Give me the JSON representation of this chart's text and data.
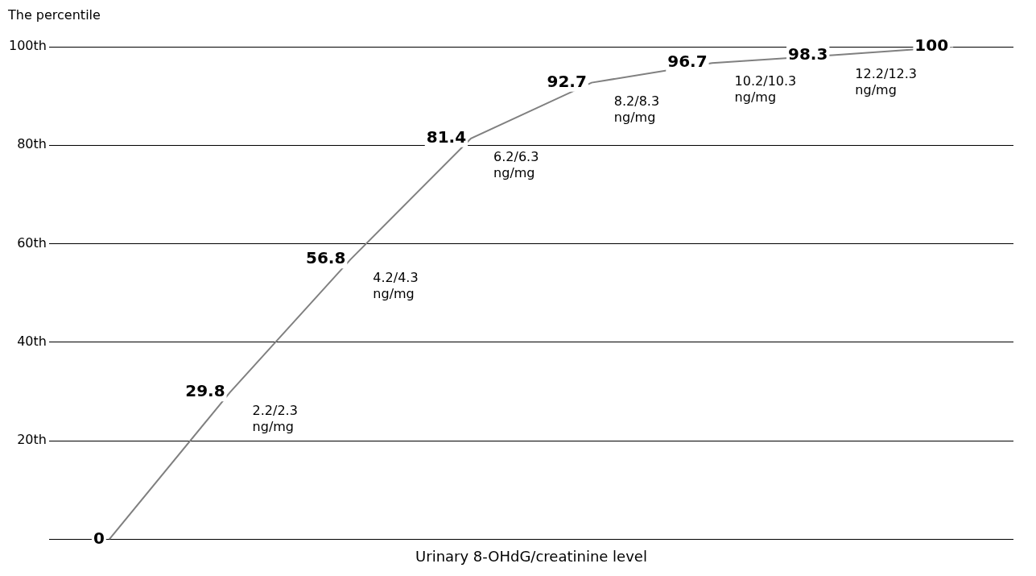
{
  "chart_data": {
    "type": "line",
    "ylabel": "The percentile",
    "xlabel": "Urinary 8-OHdG/creatinine level",
    "categories": [
      null,
      null,
      null,
      null,
      null,
      null,
      null,
      null
    ],
    "series": [
      {
        "color": "#808080",
        "values": [
          0,
          29.8,
          56.8,
          81.4,
          92.7,
          96.7,
          98.3,
          100
        ]
      }
    ],
    "ylim": [
      0,
      100
    ],
    "yticks": [
      {
        "value": 0,
        "label": null
      },
      {
        "value": 20,
        "label": "20th"
      },
      {
        "value": 40,
        "label": "40th"
      },
      {
        "value": 60,
        "label": "60th"
      },
      {
        "value": 80,
        "label": "80th"
      },
      {
        "value": 100,
        "label": "100th"
      }
    ],
    "grid": "y",
    "data_labels": true,
    "legend": false,
    "annotations": [
      "2.2/2.3 ng/mg",
      "4.2/4.3 ng/mg",
      "6.2/6.3 ng/mg",
      "8.2/8.3 ng/mg",
      "10.2/10.3 ng/mg",
      "12.2/12.3 ng/mg"
    ]
  }
}
